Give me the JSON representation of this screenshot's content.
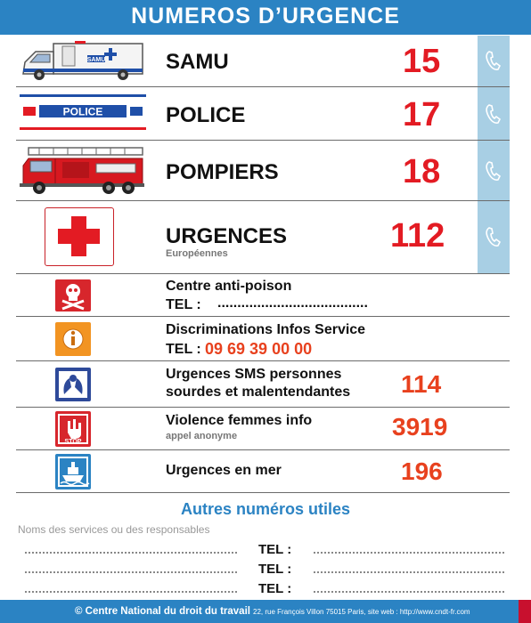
{
  "header": {
    "title": "NUMEROS D’URGENCE"
  },
  "emergency": [
    {
      "name": "SAMU",
      "number": "15"
    },
    {
      "name": "POLICE",
      "number": "17"
    },
    {
      "name": "POMPIERS",
      "number": "18"
    },
    {
      "name": "URGENCES",
      "sub": "Européennes",
      "number": "112"
    }
  ],
  "icons": {
    "ambulance_text": "SAMU",
    "police_text": "POLICE",
    "stop_text": "STOP"
  },
  "services": [
    {
      "name": "Centre anti-poison",
      "tel_label": "TEL :",
      "tel_value": "......................................"
    },
    {
      "name": "Discriminations Infos Service",
      "tel_label": "TEL :",
      "tel_value": "09 69 39 00 00"
    },
    {
      "name_line1": "Urgences SMS personnes",
      "name_line2": "sourdes et malentendantes",
      "number": "114"
    },
    {
      "name": "Violence femmes info",
      "sub": "appel anonyme",
      "number": "3919"
    },
    {
      "name": "Urgences en mer",
      "number": "196"
    }
  ],
  "autres": {
    "title": "Autres numéros utiles",
    "hint": "Noms des services ou des responsables",
    "tel_label": "TEL :"
  },
  "footer": {
    "copyright": "© Centre National du droit du travail",
    "address": "22, rue François Villon 75015 Paris, site web : http://www.cndt-fr.com"
  },
  "colors": {
    "accent": "#2b83c3",
    "red": "#e31b23",
    "orange_red": "#e8411e",
    "phone_col": "#a8cfe4"
  }
}
